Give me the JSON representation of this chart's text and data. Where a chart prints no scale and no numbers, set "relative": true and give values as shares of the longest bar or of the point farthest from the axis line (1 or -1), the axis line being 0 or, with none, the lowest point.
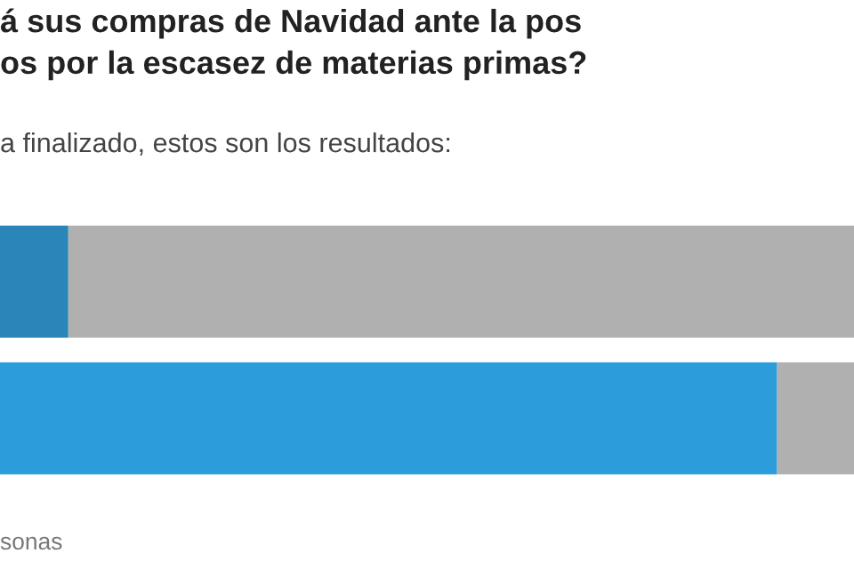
{
  "chart_data": {
    "type": "bar",
    "orientation": "horizontal",
    "stacked": true,
    "relative": true,
    "title": "á sus compras de Navidad ante la pos\nos por la escasez de materias primas?",
    "subtitle": "a finalizado, estos son los resultados:",
    "annotations": [
      "sonas"
    ],
    "categories": [
      null,
      null
    ],
    "series": [
      {
        "colors": [
          "#2a86b8",
          "#2d9cdb"
        ],
        "values": [
          0.08,
          0.91
        ]
      },
      {
        "color": "#b0b0b0",
        "values": [
          0.92,
          0.09
        ]
      }
    ],
    "legend": false
  }
}
